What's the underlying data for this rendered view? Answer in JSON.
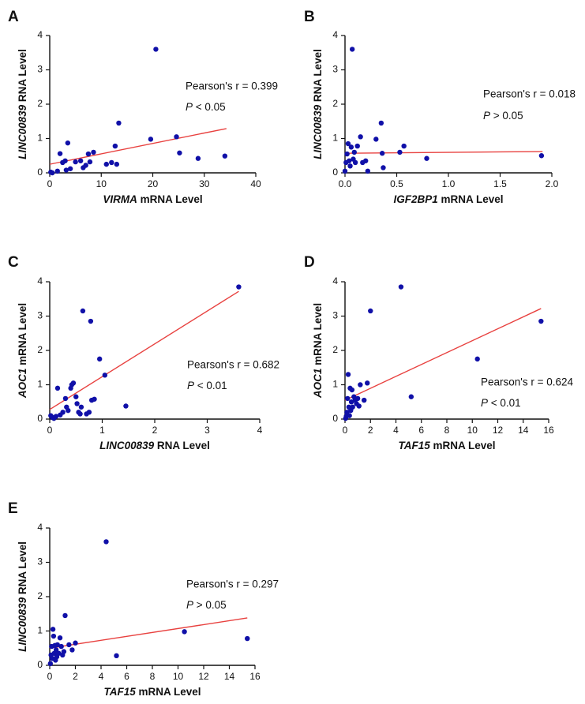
{
  "figure": {
    "colors": {
      "points": "#1010a8",
      "fit_line": "#e8413f",
      "axes": "#111111"
    }
  },
  "chart_data": [
    {
      "panel": "A",
      "type": "scatter",
      "xlabel_italic": "VIRMA",
      "xlabel_rest": " mRNA Level",
      "ylabel_italic": "LINC00839",
      "ylabel_rest": " RNA Level",
      "xlim": [
        0,
        40
      ],
      "ylim": [
        0,
        4
      ],
      "x_ticks": [
        0,
        10,
        20,
        30,
        40
      ],
      "y_ticks": [
        0,
        1,
        2,
        3,
        4
      ],
      "stat_r": "Pearson's r = 0.399",
      "stat_p_italic": "P",
      "stat_p_rest": " < 0.05",
      "fit": [
        [
          0,
          0.25
        ],
        [
          34.3,
          1.29
        ]
      ],
      "points": [
        [
          0.2,
          0.02
        ],
        [
          0.5,
          0.0
        ],
        [
          1.5,
          0.05
        ],
        [
          2.0,
          0.56
        ],
        [
          2.5,
          0.3
        ],
        [
          3.0,
          0.35
        ],
        [
          3.2,
          0.08
        ],
        [
          3.5,
          0.87
        ],
        [
          4.0,
          0.12
        ],
        [
          5.0,
          0.32
        ],
        [
          6.0,
          0.35
        ],
        [
          6.5,
          0.15
        ],
        [
          7.0,
          0.22
        ],
        [
          7.5,
          0.55
        ],
        [
          7.8,
          0.32
        ],
        [
          8.5,
          0.6
        ],
        [
          11.0,
          0.25
        ],
        [
          12.0,
          0.3
        ],
        [
          12.7,
          0.78
        ],
        [
          13.0,
          0.25
        ],
        [
          13.4,
          1.45
        ],
        [
          19.6,
          0.98
        ],
        [
          20.6,
          3.6
        ],
        [
          24.6,
          1.05
        ],
        [
          25.2,
          0.58
        ],
        [
          28.8,
          0.42
        ],
        [
          34.0,
          0.49
        ]
      ]
    },
    {
      "panel": "B",
      "type": "scatter",
      "xlabel_italic": "IGF2BP1",
      "xlabel_rest": " mRNA Level",
      "ylabel_italic": "LINC00839",
      "ylabel_rest": " RNA Level",
      "xlim": [
        0,
        2.0
      ],
      "ylim": [
        0,
        4
      ],
      "x_ticks": [
        0.0,
        0.5,
        1.0,
        1.5,
        2.0
      ],
      "y_ticks": [
        0,
        1,
        2,
        3,
        4
      ],
      "stat_r": "Pearson's r = 0.018",
      "stat_p_italic": "P",
      "stat_p_rest": " > 0.05",
      "fit": [
        [
          0,
          0.57
        ],
        [
          1.91,
          0.62
        ]
      ],
      "points": [
        [
          0.0,
          0.05
        ],
        [
          0.01,
          0.3
        ],
        [
          0.02,
          0.55
        ],
        [
          0.03,
          0.85
        ],
        [
          0.04,
          0.35
        ],
        [
          0.05,
          0.2
        ],
        [
          0.06,
          0.75
        ],
        [
          0.07,
          3.6
        ],
        [
          0.08,
          0.4
        ],
        [
          0.09,
          0.6
        ],
        [
          0.1,
          0.3
        ],
        [
          0.12,
          0.78
        ],
        [
          0.15,
          1.05
        ],
        [
          0.17,
          0.3
        ],
        [
          0.2,
          0.35
        ],
        [
          0.22,
          0.05
        ],
        [
          0.3,
          0.98
        ],
        [
          0.35,
          1.45
        ],
        [
          0.36,
          0.57
        ],
        [
          0.37,
          0.15
        ],
        [
          0.53,
          0.6
        ],
        [
          0.57,
          0.78
        ],
        [
          0.79,
          0.42
        ],
        [
          1.9,
          0.5
        ]
      ]
    },
    {
      "panel": "C",
      "type": "scatter",
      "xlabel_italic": "LINC00839",
      "xlabel_rest": " RNA Level",
      "ylabel_italic": "AOC1",
      "ylabel_rest": " mRNA Level",
      "xlim": [
        0,
        4
      ],
      "ylim": [
        0,
        4
      ],
      "x_ticks": [
        0,
        1,
        2,
        3,
        4
      ],
      "y_ticks": [
        0,
        1,
        2,
        3,
        4
      ],
      "stat_r": "Pearson's r = 0.682",
      "stat_p_italic": "P",
      "stat_p_rest": " < 0.01",
      "fit": [
        [
          0,
          0.28
        ],
        [
          3.6,
          3.72
        ]
      ],
      "points": [
        [
          0.02,
          0.1
        ],
        [
          0.05,
          0.05
        ],
        [
          0.08,
          0.02
        ],
        [
          0.12,
          0.08
        ],
        [
          0.15,
          0.9
        ],
        [
          0.2,
          0.12
        ],
        [
          0.25,
          0.2
        ],
        [
          0.3,
          0.6
        ],
        [
          0.32,
          0.35
        ],
        [
          0.35,
          0.25
        ],
        [
          0.4,
          0.9
        ],
        [
          0.42,
          1.0
        ],
        [
          0.45,
          1.05
        ],
        [
          0.5,
          0.65
        ],
        [
          0.52,
          0.45
        ],
        [
          0.55,
          0.2
        ],
        [
          0.58,
          0.15
        ],
        [
          0.6,
          0.35
        ],
        [
          0.63,
          3.15
        ],
        [
          0.7,
          0.15
        ],
        [
          0.75,
          0.2
        ],
        [
          0.78,
          2.85
        ],
        [
          0.8,
          0.55
        ],
        [
          0.85,
          0.58
        ],
        [
          0.95,
          1.75
        ],
        [
          1.05,
          1.28
        ],
        [
          1.45,
          0.38
        ],
        [
          3.6,
          3.85
        ]
      ]
    },
    {
      "panel": "D",
      "type": "scatter",
      "xlabel_italic": "TAF15",
      "xlabel_rest": " mRNA Level",
      "ylabel_italic": "AOC1",
      "ylabel_rest": " mRNA Level",
      "xlim": [
        0,
        16
      ],
      "ylim": [
        0,
        4
      ],
      "x_ticks": [
        0,
        2,
        4,
        6,
        8,
        10,
        12,
        14,
        16
      ],
      "y_ticks": [
        0,
        1,
        2,
        3,
        4
      ],
      "stat_r": "Pearson's r = 0.624",
      "stat_p_italic": "P",
      "stat_p_rest": " < 0.01",
      "fit": [
        [
          0,
          0.55
        ],
        [
          15.4,
          3.22
        ]
      ],
      "points": [
        [
          0.05,
          0.02
        ],
        [
          0.1,
          0.08
        ],
        [
          0.15,
          0.2
        ],
        [
          0.2,
          0.6
        ],
        [
          0.25,
          1.3
        ],
        [
          0.3,
          0.35
        ],
        [
          0.35,
          0.1
        ],
        [
          0.4,
          0.9
        ],
        [
          0.45,
          0.25
        ],
        [
          0.5,
          0.5
        ],
        [
          0.55,
          0.85
        ],
        [
          0.6,
          0.35
        ],
        [
          0.7,
          0.65
        ],
        [
          0.8,
          0.55
        ],
        [
          0.9,
          0.45
        ],
        [
          1.0,
          0.6
        ],
        [
          1.1,
          0.38
        ],
        [
          1.2,
          1.0
        ],
        [
          1.5,
          0.55
        ],
        [
          1.75,
          1.05
        ],
        [
          2.0,
          3.15
        ],
        [
          4.4,
          3.85
        ],
        [
          5.2,
          0.65
        ],
        [
          10.4,
          1.75
        ],
        [
          15.4,
          2.85
        ]
      ]
    },
    {
      "panel": "E",
      "type": "scatter",
      "xlabel_italic": "TAF15",
      "xlabel_rest": " mRNA Level",
      "ylabel_italic": "LINC00839",
      "ylabel_rest": " RNA Level",
      "xlim": [
        0,
        16
      ],
      "ylim": [
        0,
        4
      ],
      "x_ticks": [
        0,
        2,
        4,
        6,
        8,
        10,
        12,
        14,
        16
      ],
      "y_ticks": [
        0,
        1,
        2,
        3,
        4
      ],
      "stat_r": "Pearson's r = 0.297",
      "stat_p_italic": "P",
      "stat_p_rest": " > 0.05",
      "fit": [
        [
          0,
          0.5
        ],
        [
          15.4,
          1.38
        ]
      ],
      "points": [
        [
          0.05,
          0.05
        ],
        [
          0.1,
          0.3
        ],
        [
          0.15,
          0.55
        ],
        [
          0.2,
          0.2
        ],
        [
          0.25,
          1.05
        ],
        [
          0.3,
          0.85
        ],
        [
          0.35,
          0.35
        ],
        [
          0.4,
          0.58
        ],
        [
          0.45,
          0.15
        ],
        [
          0.5,
          0.45
        ],
        [
          0.55,
          0.25
        ],
        [
          0.6,
          0.6
        ],
        [
          0.7,
          0.35
        ],
        [
          0.8,
          0.8
        ],
        [
          0.9,
          0.55
        ],
        [
          1.0,
          0.3
        ],
        [
          1.1,
          0.4
        ],
        [
          1.2,
          1.45
        ],
        [
          1.5,
          0.6
        ],
        [
          1.75,
          0.45
        ],
        [
          2.0,
          0.65
        ],
        [
          4.4,
          3.6
        ],
        [
          5.2,
          0.28
        ],
        [
          10.5,
          0.98
        ],
        [
          15.4,
          0.78
        ]
      ]
    }
  ]
}
